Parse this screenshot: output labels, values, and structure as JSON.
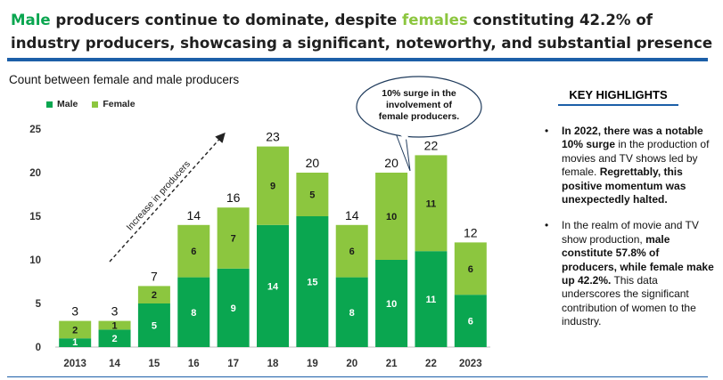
{
  "header": {
    "title_part1": "Male",
    "title_part2": " producers continue to dominate, despite ",
    "title_part3": "females",
    "title_part4": " constituting 42.2% of",
    "title_line2": "industry producers, showcasing a significant, noteworthy, and substantial presence"
  },
  "colors": {
    "male": "#0aa650",
    "female": "#8cc63f",
    "accent_rule": "#1c5fa8"
  },
  "chart_data": {
    "type": "bar",
    "stacked": true,
    "title": "Count between female and male producers",
    "categories": [
      "2013",
      "14",
      "15",
      "16",
      "17",
      "18",
      "19",
      "20",
      "21",
      "22",
      "2023"
    ],
    "series": [
      {
        "name": "Male",
        "values": [
          1,
          2,
          5,
          8,
          9,
          14,
          15,
          8,
          10,
          11,
          6
        ]
      },
      {
        "name": "Female",
        "values": [
          2,
          1,
          2,
          6,
          7,
          9,
          5,
          6,
          10,
          11,
          6
        ]
      }
    ],
    "totals": [
      3,
      3,
      7,
      14,
      16,
      23,
      20,
      14,
      20,
      22,
      12
    ],
    "ylim": [
      0,
      25
    ],
    "yticks": [
      0,
      5,
      10,
      15,
      20,
      25
    ],
    "grid": false,
    "legend": "top-left",
    "annotations": {
      "trend_label": "Increase in producers",
      "callout": "10% surge in the involvement of female producers."
    }
  },
  "highlights": {
    "heading": "KEY HIGHLIGHTS",
    "items": [
      [
        {
          "t": "In 2022, there was a notable ",
          "b": true
        },
        {
          "t": "10% surge",
          "b": true
        },
        {
          "t": " in the production of movies and TV shows led by female. ",
          "b": false
        },
        {
          "t": "Regrettably, this positive momentum was unexpectedly halted.",
          "b": true
        }
      ],
      [
        {
          "t": "In the realm of movie and TV show production, ",
          "b": false
        },
        {
          "t": "male constitute 57.8% of producers, while female make up 42.2%.",
          "b": true
        },
        {
          "t": " This data underscores the significant contribution of women to the industry.",
          "b": false
        }
      ]
    ]
  }
}
